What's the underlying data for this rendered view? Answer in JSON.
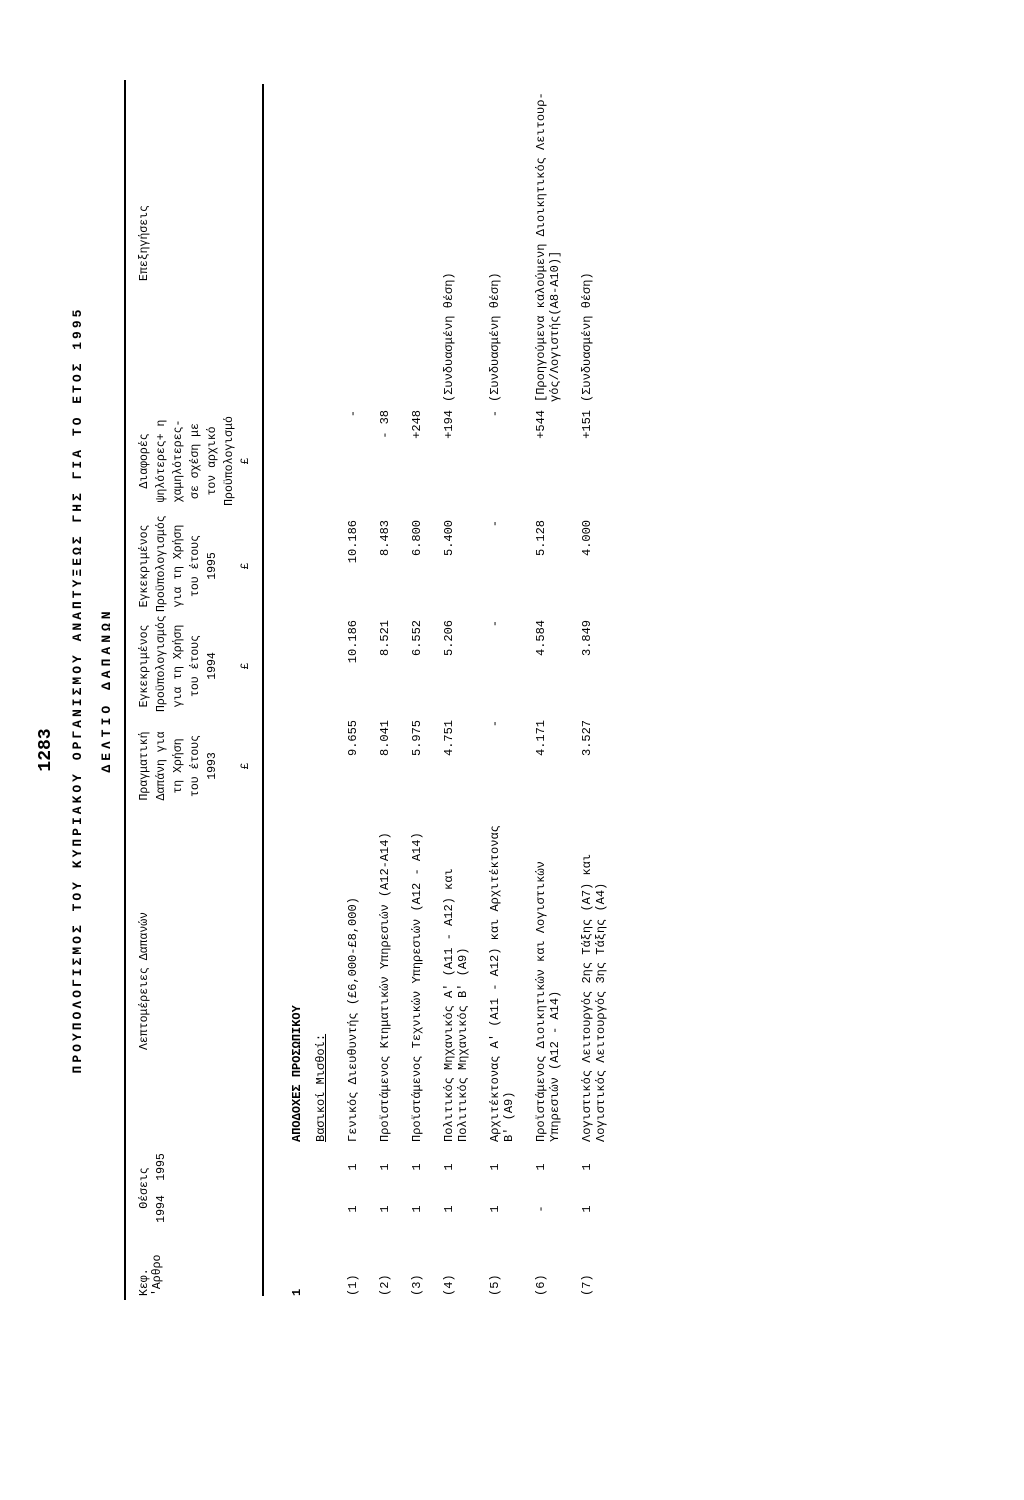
{
  "page_number": "1283",
  "title": "ΠΡΟΥΠΟΛΟΓΙΣΜΟΣ  ΤΟΥ  ΚΥΠΡΙΑΚΟΥ  ΟΡΓΑΝΙΣΜΟΥ  ΑΝΑΠΤΥΞΕΩΣ  ΓΗΣ  ΓΙΑ  ΤΟ  ΕΤΟΣ  1995",
  "subtitle": "ΔΕΛΤΙΟ   ΔΑΠΑΝΩΝ",
  "header": {
    "kef": "Κεφ. 'Αρθρο",
    "positions": "Θέσεις",
    "years": [
      "1994",
      "1995"
    ],
    "desc": "Λεπτομέρειες  Δαπανών",
    "col_real": [
      "Πραγματική",
      "Δαπάνη για",
      "τη Χρήση",
      "του έτους",
      "1993"
    ],
    "col_appr94": [
      "Εγκεκριμένος",
      "Προϋπολογισμός",
      "για τη Χρήση",
      "του έτους",
      "1994"
    ],
    "col_appr95": [
      "Εγκεκριμένος",
      "Προϋπολογισμός",
      "για τη Χρήση",
      "του έτους",
      "1995"
    ],
    "col_diff": [
      "Διαφορές",
      "ψηλότερες+ η",
      "χαμηλότερες-",
      "σε σχέση με",
      "τον αρχικό",
      "Προϋπολογισμό"
    ],
    "col_notes": "Επεξηγήσεις",
    "currency": "£"
  },
  "section": {
    "kef": "1",
    "title": "ΑΠΟΔΟΧΕΣ ΠΡΟΣΩΠΙΚΟΥ",
    "subtitle": "Βασικοί Μισθοί:"
  },
  "rows": [
    {
      "idx": "(1)",
      "y1": "1",
      "y2": "1",
      "desc": "Γενικός Διευθυντής (£6,000-£8,000)",
      "v93": "9.655",
      "v94": "10.186",
      "v95": "10.186",
      "diff": "-",
      "notes": ""
    },
    {
      "idx": "(2)",
      "y1": "1",
      "y2": "1",
      "desc": "Προϊστάμενος Κτηματικών Υπηρεσιών (Α12-Α14)",
      "v93": "8.041",
      "v94": "8.521",
      "v95": "8.483",
      "diff": "- 38",
      "notes": ""
    },
    {
      "idx": "(3)",
      "y1": "1",
      "y2": "1",
      "desc": "Προϊστάμενος Τεχνικών Υπηρεσιών (Α12 - Α14)",
      "v93": "5.975",
      "v94": "6.552",
      "v95": "6.800",
      "diff": "+248",
      "notes": ""
    },
    {
      "idx": "(4)",
      "y1": "1",
      "y2": "1",
      "desc": "Πολιτικός Μηχανικός Α' (Α11 - Α12) και Πολιτικός Μηχανικός Β' (Α9)",
      "v93": "4.751",
      "v94": "5.206",
      "v95": "5.400",
      "diff": "+194",
      "notes": "(Συνδυασμένη θέση)"
    },
    {
      "idx": "(5)",
      "y1": "1",
      "y2": "1",
      "desc": "Αρχιτέκτονας Α' (Α11 - Α12) και Αρχιτέκτονας Β' (Α9)",
      "v93": "-",
      "v94": "-",
      "v95": "-",
      "diff": "-",
      "notes": "(Συνδυασμένη θέση)"
    },
    {
      "idx": "(6)",
      "y1": "-",
      "y2": "1",
      "desc": "Προϊστάμενος Διοικητικών και Λογιστικών Υπηρεσιών (Α12 - Α14)",
      "v93": "4.171",
      "v94": "4.584",
      "v95": "5.128",
      "diff": "+544",
      "notes": "[Προηγούμενα καλούμενη Διοικητικός Λειτουρ- γός/Λογιστής(Α8-Α10)]"
    },
    {
      "idx": "(7)",
      "y1": "1",
      "y2": "1",
      "desc": "Λογιστικός Λειτουργός 2ης Τάξης (Α7) και Λογιστικός Λειτουργός 3ης Τάξης (Α4)",
      "v93": "3.527",
      "v94": "3.849",
      "v95": "4.000",
      "diff": "+151",
      "notes": "(Συνδυασμένη θέση)"
    }
  ]
}
